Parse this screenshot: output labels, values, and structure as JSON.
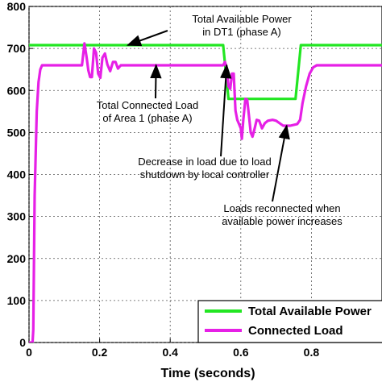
{
  "chart_data": {
    "type": "line",
    "xlabel": "Time (seconds)",
    "ylabel": "",
    "xlim": [
      0,
      1.0
    ],
    "ylim": [
      0,
      800
    ],
    "xticks": [
      "0",
      "0.2",
      "0.4",
      "0.6",
      "0.8"
    ],
    "yticks": [
      "0",
      "100",
      "200",
      "300",
      "400",
      "500",
      "600",
      "700",
      "800"
    ],
    "grid": true,
    "legend_position": "bottom-right",
    "series": [
      {
        "name": "Total Available Power",
        "color": "#22e622",
        "points": [
          [
            0,
            708
          ],
          [
            0.55,
            708
          ],
          [
            0.565,
            580
          ],
          [
            0.755,
            580
          ],
          [
            0.77,
            708
          ],
          [
            1.0,
            708
          ]
        ]
      },
      {
        "name": "Connected Load",
        "color": "#e620e6",
        "points": [
          [
            0,
            0
          ],
          [
            0.01,
            0
          ],
          [
            0.012,
            30
          ],
          [
            0.016,
            350
          ],
          [
            0.022,
            550
          ],
          [
            0.027,
            620
          ],
          [
            0.032,
            650
          ],
          [
            0.037,
            660
          ],
          [
            0.15,
            660
          ],
          [
            0.157,
            712
          ],
          [
            0.163,
            680
          ],
          [
            0.168,
            648
          ],
          [
            0.173,
            632
          ],
          [
            0.178,
            632
          ],
          [
            0.184,
            700
          ],
          [
            0.19,
            690
          ],
          [
            0.196,
            640
          ],
          [
            0.202,
            630
          ],
          [
            0.208,
            678
          ],
          [
            0.215,
            688
          ],
          [
            0.222,
            662
          ],
          [
            0.23,
            646
          ],
          [
            0.238,
            668
          ],
          [
            0.245,
            668
          ],
          [
            0.252,
            652
          ],
          [
            0.26,
            660
          ],
          [
            0.55,
            660
          ],
          [
            0.555,
            668
          ],
          [
            0.56,
            654
          ],
          [
            0.565,
            610
          ],
          [
            0.57,
            604
          ],
          [
            0.575,
            640
          ],
          [
            0.58,
            640
          ],
          [
            0.585,
            552
          ],
          [
            0.59,
            530
          ],
          [
            0.595,
            520
          ],
          [
            0.6,
            510
          ],
          [
            0.603,
            485
          ],
          [
            0.607,
            530
          ],
          [
            0.613,
            580
          ],
          [
            0.618,
            578
          ],
          [
            0.623,
            540
          ],
          [
            0.628,
            500
          ],
          [
            0.633,
            490
          ],
          [
            0.638,
            505
          ],
          [
            0.645,
            530
          ],
          [
            0.652,
            528
          ],
          [
            0.66,
            510
          ],
          [
            0.668,
            522
          ],
          [
            0.677,
            528
          ],
          [
            0.69,
            530
          ],
          [
            0.7,
            528
          ],
          [
            0.72,
            516
          ],
          [
            0.74,
            516
          ],
          [
            0.76,
            520
          ],
          [
            0.768,
            530
          ],
          [
            0.775,
            570
          ],
          [
            0.785,
            610
          ],
          [
            0.795,
            640
          ],
          [
            0.805,
            655
          ],
          [
            0.815,
            660
          ],
          [
            1.0,
            660
          ]
        ]
      }
    ],
    "annotations": [
      {
        "lines": [
          "Total Available Power",
          "in DT1 (phase A)"
        ],
        "target": [
          0.28,
          708
        ]
      },
      {
        "lines": [
          "Total Connected Load",
          "of Area 1 (phase A)"
        ],
        "target": [
          0.36,
          660
        ]
      },
      {
        "lines": [
          "Decrease in load due to load",
          "shutdown by local controller"
        ],
        "target": [
          0.56,
          660
        ]
      },
      {
        "lines": [
          "Loads reconnected when",
          "available power increases"
        ],
        "target": [
          0.73,
          516
        ]
      }
    ]
  }
}
